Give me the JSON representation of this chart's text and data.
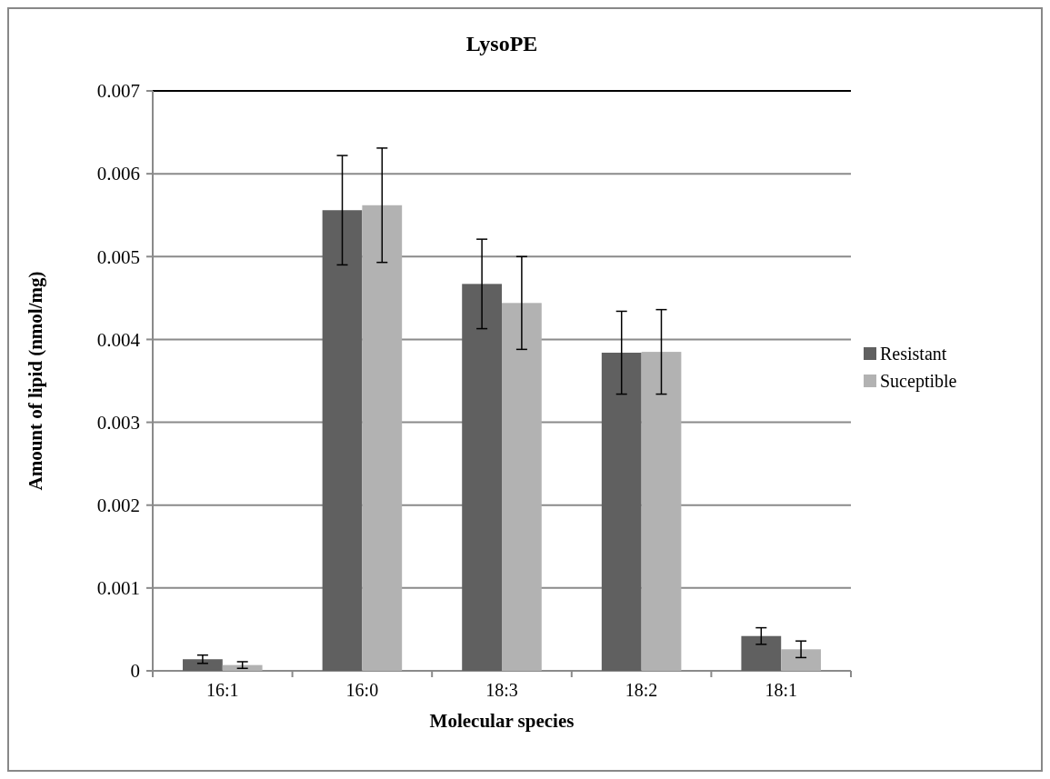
{
  "chart_data": {
    "type": "bar",
    "title": "LysoPE",
    "xlabel": "Molecular species",
    "ylabel": "Amount of lipid (nmol/mg)",
    "categories": [
      "16:1",
      "16:0",
      "18:3",
      "18:2",
      "18:1"
    ],
    "series": [
      {
        "name": "Resistant",
        "color": "#606060",
        "values": [
          0.00014,
          0.00556,
          0.00467,
          0.00384,
          0.00042
        ],
        "errors": [
          5e-05,
          0.00066,
          0.00054,
          0.0005,
          0.0001
        ]
      },
      {
        "name": "Suceptible",
        "color": "#b2b2b2",
        "values": [
          7e-05,
          0.00562,
          0.00444,
          0.00385,
          0.00026
        ],
        "errors": [
          4e-05,
          0.00069,
          0.00056,
          0.00051,
          0.0001
        ]
      }
    ],
    "ylim": [
      0,
      0.007
    ],
    "yticks": [
      0,
      0.001,
      0.002,
      0.003,
      0.004,
      0.005,
      0.006,
      0.007
    ],
    "grid": "y",
    "legend": "right"
  }
}
